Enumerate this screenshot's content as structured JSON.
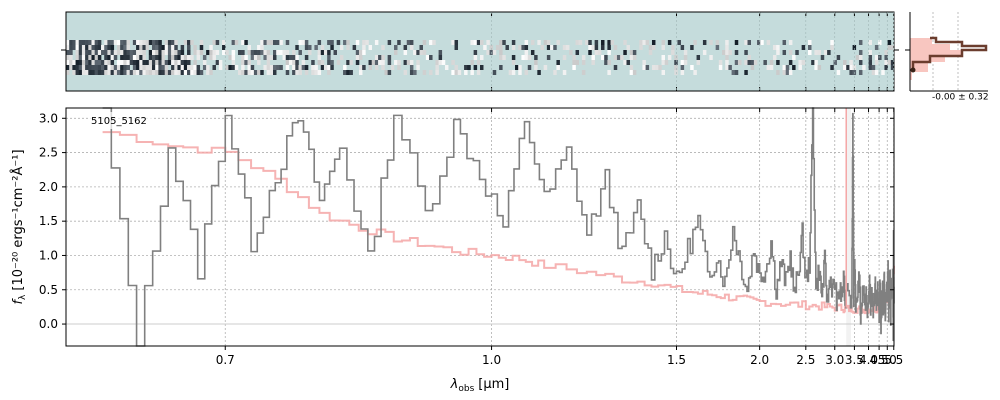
{
  "chart_data": {
    "type": "line",
    "object_label": "5105_5162",
    "xlabel_main": "λ",
    "xlabel_sub": "obs",
    "xlabel_unit": "[μm]",
    "ylabel_main": "f",
    "ylabel_sub": "λ",
    "ylabel_unit": "[10⁻²⁰ ergs⁻¹cm⁻²Å⁻¹]",
    "x_scale": "reciprocal",
    "xlim": [
      0.6,
      5.52
    ],
    "ylim": [
      -0.32,
      3.15
    ],
    "xticks": [
      0.7,
      1.0,
      1.5,
      2.0,
      2.5,
      3.0,
      3.5,
      4.0,
      4.5,
      5.0,
      5.5
    ],
    "xtick_labels": [
      "0.7",
      "1.0",
      "1.5",
      "2.0",
      "2.5",
      "3.0",
      "3.5",
      "4.0",
      "4.5",
      "5.0",
      "5.5"
    ],
    "yticks": [
      0.0,
      0.5,
      1.0,
      1.5,
      2.0,
      2.5,
      3.0
    ],
    "ytick_labels": [
      "0.0",
      "0.5",
      "1.0",
      "1.5",
      "2.0",
      "2.5",
      "3.0"
    ],
    "grid": true,
    "gap_region": [
      3.27,
      3.4
    ],
    "series": [
      {
        "role": "data",
        "color": "#808080",
        "x": [
          0.62,
          0.64,
          0.66,
          0.68,
          0.7,
          0.72,
          0.74,
          0.76,
          0.78,
          0.8,
          0.83,
          0.86,
          0.9,
          0.94,
          0.98,
          1.02,
          1.06,
          1.1,
          1.15,
          1.2,
          1.25,
          1.3,
          1.35,
          1.4,
          1.45,
          1.5,
          1.55,
          1.6,
          1.65,
          1.7,
          1.75,
          1.8,
          1.85,
          1.9,
          1.95,
          2.0,
          2.05,
          2.1,
          2.15,
          2.2,
          2.25,
          2.3,
          2.35,
          2.4,
          2.45,
          2.5,
          2.55,
          2.6,
          2.65,
          2.7,
          2.75,
          2.8,
          2.85,
          2.9,
          2.95,
          3.0,
          3.05,
          3.1,
          3.15,
          3.2,
          3.25,
          3.28,
          3.42,
          3.45,
          3.48,
          3.5,
          3.55,
          3.6,
          3.65,
          3.7,
          3.75,
          3.8,
          3.85,
          3.9,
          3.95,
          4.0,
          4.05,
          4.1,
          4.15,
          4.2,
          4.25,
          4.3,
          4.35,
          4.4,
          4.45,
          4.5,
          4.55,
          4.6,
          4.65,
          4.7,
          4.75,
          4.8,
          4.85,
          4.9,
          4.95,
          5.0,
          5.05,
          5.1,
          5.15,
          5.2,
          5.25,
          5.3,
          5.35,
          5.4,
          5.45,
          5.48,
          5.5
        ],
        "y": [
          3.1,
          -0.3,
          2.6,
          0.8,
          3.1,
          1.2,
          2.2,
          3.0,
          1.8,
          2.6,
          0.9,
          3.1,
          1.6,
          2.9,
          2.2,
          1.4,
          3.0,
          1.8,
          2.5,
          1.3,
          2.1,
          1.0,
          1.7,
          0.8,
          1.3,
          0.6,
          1.1,
          1.5,
          0.7,
          1.0,
          0.6,
          1.4,
          0.9,
          0.5,
          1.1,
          0.7,
          0.8,
          1.2,
          0.5,
          0.9,
          0.6,
          1.0,
          0.4,
          0.8,
          1.3,
          0.6,
          0.9,
          3.1,
          0.5,
          0.8,
          0.4,
          0.9,
          0.3,
          0.7,
          0.5,
          0.6,
          0.3,
          0.5,
          0.4,
          0.6,
          0.3,
          0.7,
          0.3,
          3.1,
          0.4,
          0.8,
          0.2,
          0.5,
          0.7,
          0.1,
          0.4,
          0.6,
          0.2,
          0.5,
          0.1,
          0.4,
          0.6,
          0.2,
          0.5,
          0.0,
          0.4,
          0.6,
          0.1,
          0.4,
          0.5,
          0.2,
          0.6,
          0.0,
          0.3,
          0.5,
          0.2,
          0.7,
          0.1,
          0.4,
          0.6,
          0.3,
          0.9,
          0.2,
          0.5,
          0.7,
          0.1,
          0.6,
          0.3,
          0.8,
          -0.2,
          1.3,
          0.4
        ]
      },
      {
        "role": "model",
        "color": "#f4a6a6",
        "x": [
          0.62,
          0.66,
          0.7,
          0.74,
          0.78,
          0.82,
          0.86,
          0.9,
          0.95,
          1.0,
          1.05,
          1.1,
          1.2,
          1.3,
          1.4,
          1.5,
          1.6,
          1.7,
          1.8,
          1.9,
          2.0,
          2.2,
          2.4,
          2.6,
          2.8,
          3.0,
          3.2,
          3.27,
          3.42,
          3.6,
          3.8,
          4.0,
          4.2,
          4.4,
          4.6,
          4.8,
          4.9,
          5.0,
          5.1,
          5.2,
          5.3,
          5.4,
          5.45,
          5.5
        ],
        "y": [
          2.8,
          2.6,
          2.5,
          2.1,
          1.6,
          1.4,
          1.25,
          1.15,
          1.05,
          1.0,
          0.95,
          0.85,
          0.75,
          0.65,
          0.6,
          0.5,
          0.45,
          0.42,
          0.38,
          0.35,
          0.33,
          0.3,
          0.28,
          0.27,
          0.25,
          0.24,
          0.23,
          0.22,
          0.22,
          0.22,
          0.21,
          0.22,
          0.22,
          0.23,
          0.24,
          0.26,
          0.3,
          0.4,
          0.35,
          0.4,
          0.45,
          0.5,
          0.6,
          0.8
        ]
      }
    ]
  },
  "side_panel": {
    "stat_label": "-0.00 ± 0.32"
  },
  "colors": {
    "data_line": "#808080",
    "model_line": "#f4a6a6",
    "spectrum_bg": "#c5dcdc",
    "hist_line": "#6b3d2e",
    "hist_fill": "#f8c6c0"
  }
}
